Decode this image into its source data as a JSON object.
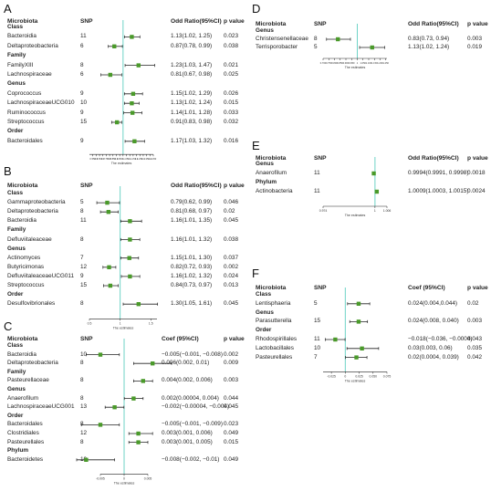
{
  "columns": {
    "microbiota": "Microbiota",
    "snp": "SNP",
    "or": "Odd Ratio(95%CI)",
    "coef": "Coef (95%CI)",
    "p": "p value",
    "axis_label": "The estimates"
  },
  "colors": {
    "marker": "#4a9a2a",
    "refline": "#6fd3c7",
    "line": "#222222"
  },
  "chart_data": [
    {
      "type": "forest",
      "panel": "A",
      "metric": "or",
      "xlim": [
        0.5,
        1.45
      ],
      "tick_labels": [
        "0.550",
        "0.6",
        "0.650",
        "0.7",
        "0.750",
        "0.8",
        "0.850",
        "0.9",
        "0.950",
        "1",
        "1.050",
        "1.1",
        "1.150",
        "1.2",
        "1.250",
        "1.3",
        "1.350",
        "1.4",
        "1.450"
      ],
      "ticks": [
        0.55,
        0.6,
        0.65,
        0.7,
        0.75,
        0.8,
        0.85,
        0.9,
        0.95,
        1.0,
        1.05,
        1.1,
        1.15,
        1.2,
        1.25,
        1.3,
        1.35,
        1.4,
        1.45
      ],
      "ref": 1.0,
      "sections": [
        {
          "name": "Class",
          "rows": [
            {
              "taxon": "Bacteroidia",
              "snp": "11",
              "est": 1.13,
              "lo": 1.02,
              "hi": 1.25,
              "ci": "1.13(1.02, 1.25)",
              "p": "0.023"
            },
            {
              "taxon": "Deltaproteobacteria",
              "snp": "6",
              "est": 0.87,
              "lo": 0.78,
              "hi": 0.99,
              "ci": "0.87(0.78, 0.99)",
              "p": "0.038"
            }
          ]
        },
        {
          "name": "Family",
          "rows": [
            {
              "taxon": "FamilyXIII",
              "snp": "8",
              "est": 1.23,
              "lo": 1.03,
              "hi": 1.47,
              "ci": "1.23(1.03, 1.47)",
              "p": "0.021"
            },
            {
              "taxon": "Lachnospiraceae",
              "snp": "6",
              "est": 0.81,
              "lo": 0.67,
              "hi": 0.98,
              "ci": "0.81(0.67, 0.98)",
              "p": "0.025"
            }
          ]
        },
        {
          "name": "Genus",
          "rows": [
            {
              "taxon": "Coprococcus",
              "snp": "9",
              "est": 1.15,
              "lo": 1.02,
              "hi": 1.29,
              "ci": "1.15(1.02, 1.29)",
              "p": "0.026"
            },
            {
              "taxon": "LachnospiraceaeUCG010",
              "snp": "10",
              "est": 1.13,
              "lo": 1.02,
              "hi": 1.24,
              "ci": "1.13(1.02, 1.24)",
              "p": "0.015"
            },
            {
              "taxon": "Ruminococcus",
              "snp": "9",
              "est": 1.14,
              "lo": 1.01,
              "hi": 1.28,
              "ci": "1.14(1.01, 1.28)",
              "p": "0.033"
            },
            {
              "taxon": "Streptococcus",
              "snp": "15",
              "est": 0.91,
              "lo": 0.83,
              "hi": 0.98,
              "ci": "0.91(0.83, 0.98)",
              "p": "0.032"
            }
          ]
        },
        {
          "name": "Order",
          "rows": [
            {
              "taxon": "Bacteroidales",
              "snp": "9",
              "est": 1.17,
              "lo": 1.03,
              "hi": 1.32,
              "ci": "1.17(1.03, 1.32)",
              "p": "0.016"
            }
          ]
        }
      ]
    },
    {
      "type": "forest",
      "panel": "B",
      "metric": "or",
      "xlim": [
        0.5,
        1.6
      ],
      "tick_labels": [
        "0.5",
        "1",
        "1.5"
      ],
      "ticks": [
        0.5,
        1.0,
        1.5
      ],
      "ref": 1.0,
      "sections": [
        {
          "name": "Class",
          "rows": [
            {
              "taxon": "Gammaproteobacteria",
              "snp": "5",
              "est": 0.79,
              "lo": 0.62,
              "hi": 0.99,
              "ci": "0.79(0.62, 0.99)",
              "p": "0.046"
            },
            {
              "taxon": "Deltaproteobacteria",
              "snp": "8",
              "est": 0.81,
              "lo": 0.68,
              "hi": 0.97,
              "ci": "0.81(0.68, 0.97)",
              "p": "0.02"
            },
            {
              "taxon": "Bacteroidia",
              "snp": "11",
              "est": 1.16,
              "lo": 1.01,
              "hi": 1.35,
              "ci": "1.16(1.01, 1.35)",
              "p": "0.045"
            }
          ]
        },
        {
          "name": "Family",
          "rows": [
            {
              "taxon": "Defluviitaleaceae",
              "snp": "8",
              "est": 1.16,
              "lo": 1.01,
              "hi": 1.32,
              "ci": "1.16(1.01, 1.32)",
              "p": "0.038"
            }
          ]
        },
        {
          "name": "Genus",
          "rows": [
            {
              "taxon": "Actinomyces",
              "snp": "7",
              "est": 1.15,
              "lo": 1.01,
              "hi": 1.3,
              "ci": "1.15(1.01, 1.30)",
              "p": "0.037"
            },
            {
              "taxon": "Butyricimonas",
              "snp": "12",
              "est": 0.82,
              "lo": 0.72,
              "hi": 0.93,
              "ci": "0.82(0.72, 0.93)",
              "p": "0.002"
            },
            {
              "taxon": "DefluviitaleaceaeUCG011",
              "snp": "9",
              "est": 1.16,
              "lo": 1.02,
              "hi": 1.32,
              "ci": "1.16(1.02, 1.32)",
              "p": "0.024"
            },
            {
              "taxon": "Streptococcus",
              "snp": "15",
              "est": 0.84,
              "lo": 0.73,
              "hi": 0.97,
              "ci": "0.84(0.73, 0.97)",
              "p": "0.013"
            }
          ]
        },
        {
          "name": "Order",
          "rows": [
            {
              "taxon": "Desulfovibrionales",
              "snp": "8",
              "est": 1.3,
              "lo": 1.05,
              "hi": 1.61,
              "ci": "1.30(1.05, 1.61)",
              "p": "0.045"
            }
          ]
        }
      ]
    },
    {
      "type": "forest",
      "panel": "C",
      "metric": "coef",
      "xlim": [
        -0.005,
        0.005
      ],
      "tick_labels": [
        "-0.005",
        "0",
        "0.005"
      ],
      "ticks": [
        -0.005,
        0,
        0.005
      ],
      "ref": 0,
      "sections": [
        {
          "name": "Class",
          "rows": [
            {
              "taxon": "Bacteroidia",
              "snp": "10",
              "est": -0.005,
              "lo": -0.008,
              "hi": -0.001,
              "ci": "−0.005(−0.001, −0.008)",
              "p": "0.002"
            },
            {
              "taxon": "Deltaproteobacteria",
              "snp": "8",
              "est": 0.006,
              "lo": 0.002,
              "hi": 0.01,
              "ci": "0.006(0.002, 0.01)",
              "p": "0.009"
            }
          ]
        },
        {
          "name": "Family",
          "rows": [
            {
              "taxon": "Pasteurellaceae",
              "snp": "8",
              "est": 0.004,
              "lo": 0.002,
              "hi": 0.006,
              "ci": "0.004(0.002, 0.006)",
              "p": "0.003"
            }
          ]
        },
        {
          "name": "Genus",
          "rows": [
            {
              "taxon": "Anaerofilum",
              "snp": "8",
              "est": 0.002,
              "lo": 4e-05,
              "hi": 0.004,
              "ci": "0.002(0.00004, 0.004)",
              "p": "0.044"
            },
            {
              "taxon": "LachnospiraceaeUCG001",
              "snp": "13",
              "est": -0.002,
              "lo": -0.004,
              "hi": -4e-05,
              "ci": "−0.002(−0.00004, −0.004)",
              "p": "0.045"
            }
          ]
        },
        {
          "name": "Order",
          "rows": [
            {
              "taxon": "Bacteroidales",
              "snp": "8",
              "est": -0.005,
              "lo": -0.009,
              "hi": -0.001,
              "ci": "−0.005(−0.001, −0.009)",
              "p": "0.023"
            },
            {
              "taxon": "Clostridiales",
              "snp": "12",
              "est": 0.003,
              "lo": 0.001,
              "hi": 0.006,
              "ci": "0.003(0.001, 0.006)",
              "p": "0.049"
            },
            {
              "taxon": "Pasteurellales",
              "snp": "8",
              "est": 0.003,
              "lo": 0.001,
              "hi": 0.005,
              "ci": "0.003(0.001, 0.005)",
              "p": "0.015"
            }
          ]
        },
        {
          "name": "Phylum",
          "rows": [
            {
              "taxon": "Bacteroidetes",
              "snp": "10",
              "est": -0.008,
              "lo": -0.01,
              "hi": -0.002,
              "ci": "−0.008(−0.002, −0.01)",
              "p": "0.049"
            }
          ]
        }
      ]
    },
    {
      "type": "forest",
      "panel": "D",
      "metric": "or",
      "xlim": [
        0.7,
        1.26
      ],
      "tick_labels": [
        "0.700",
        "0.750",
        "0.800",
        "0.850",
        "0.900",
        "0.950",
        "1",
        "1.050",
        "1.100",
        "1.150",
        "1.200",
        "1.250"
      ],
      "ticks": [
        0.7,
        0.75,
        0.8,
        0.85,
        0.9,
        0.95,
        1.0,
        1.05,
        1.1,
        1.15,
        1.2,
        1.25
      ],
      "ref": 1.0,
      "sections": [
        {
          "name": "Genus",
          "rows": [
            {
              "taxon": "Christensenellaceae",
              "snp": "8",
              "est": 0.83,
              "lo": 0.73,
              "hi": 0.94,
              "ci": "0.83(0.73, 0.94)",
              "p": "0.003"
            },
            {
              "taxon": "Terrisporobacter",
              "snp": "5",
              "est": 1.13,
              "lo": 1.02,
              "hi": 1.24,
              "ci": "1.13(1.02, 1.24)",
              "p": "0.019"
            }
          ]
        }
      ]
    },
    {
      "type": "forest",
      "panel": "E",
      "metric": "or",
      "xlim": [
        0.974,
        1.006
      ],
      "tick_labels": [
        "0.974",
        "1",
        "1.006"
      ],
      "ticks": [
        0.974,
        1.0,
        1.006
      ],
      "ref": 1.0,
      "sections": [
        {
          "name": "Genus",
          "rows": [
            {
              "taxon": "Anaerofilum",
              "snp": "11",
              "est": 0.9994,
              "lo": 0.9991,
              "hi": 0.9998,
              "ci": "0.9994(0.9991, 0.9998)",
              "p": "0.0018"
            }
          ]
        },
        {
          "name": "Phylum",
          "rows": [
            {
              "taxon": "Actinobacteria",
              "snp": "11",
              "est": 1.0009,
              "lo": 1.0003,
              "hi": 1.0015,
              "ci": "1.0009(1.0003, 1.0015)",
              "p": "0.0024"
            }
          ]
        }
      ]
    },
    {
      "type": "forest",
      "panel": "F",
      "metric": "coef",
      "xlim": [
        -0.04,
        0.075
      ],
      "tick_labels": [
        "-0.025",
        "0",
        "0.025",
        "0.050",
        "0.075"
      ],
      "ticks": [
        -0.025,
        0,
        0.025,
        0.05,
        0.075
      ],
      "ref": 0,
      "sections": [
        {
          "name": "Class",
          "rows": [
            {
              "taxon": "Lentisphaeria",
              "snp": "5",
              "est": 0.024,
              "lo": 0.004,
              "hi": 0.044,
              "ci": "0.024(0.004,0.044)",
              "p": "0.02"
            }
          ]
        },
        {
          "name": "Genus",
          "rows": [
            {
              "taxon": "Parasutterella",
              "snp": "15",
              "est": 0.024,
              "lo": 0.008,
              "hi": 0.04,
              "ci": "0.024(0.008, 0.040)",
              "p": "0.003"
            }
          ]
        },
        {
          "name": "Order",
          "rows": [
            {
              "taxon": "Rhodospirillales",
              "snp": "11",
              "est": -0.018,
              "lo": -0.036,
              "hi": -0.0004,
              "ci": "−0.018(−0.036, −0.0004)",
              "p": "0.043"
            },
            {
              "taxon": "Lactobacillales",
              "snp": "10",
              "est": 0.03,
              "lo": 0.003,
              "hi": 0.06,
              "ci": "0.03(0.003, 0.06)",
              "p": "0.035"
            },
            {
              "taxon": "Pasteurellales",
              "snp": "7",
              "est": 0.02,
              "lo": 0.0004,
              "hi": 0.039,
              "ci": "0.02(0.0004, 0.039)",
              "p": "0.042"
            }
          ]
        }
      ]
    }
  ]
}
